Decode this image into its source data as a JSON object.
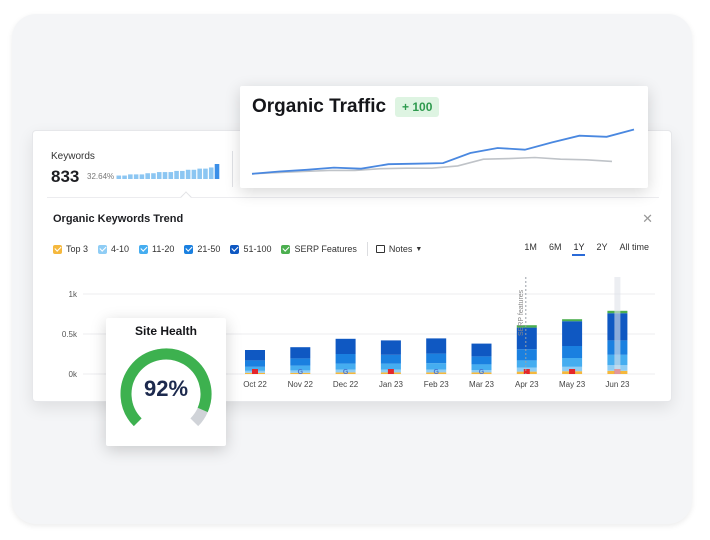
{
  "colors": {
    "top3": "#f5b83d",
    "pos4_10": "#8fcdf5",
    "pos11_20": "#45adf0",
    "pos21_50": "#1a80e0",
    "pos51_100": "#0f58c2",
    "serp": "#4caf50",
    "traffic_line": "#4a88e0",
    "traffic_prev": "#bfc3c8",
    "health_arc": "#3db14f",
    "health_track": "#d0d3d8",
    "flag": "#e5262a"
  },
  "keywords": {
    "label": "Keywords",
    "value": "833",
    "delta": "32.64%",
    "spark_values": [
      3,
      3,
      4,
      4,
      4,
      5,
      5,
      6,
      6,
      6,
      7,
      7,
      8,
      8,
      9,
      9,
      10,
      13
    ],
    "spark_icon": "bar-sparkline"
  },
  "trend": {
    "title": "Organic Keywords Trend",
    "close_icon": "close-icon",
    "legend": [
      {
        "label": "Top 3",
        "color": "#f5b83d"
      },
      {
        "label": "4-10",
        "color": "#8fcdf5"
      },
      {
        "label": "11-20",
        "color": "#45adf0"
      },
      {
        "label": "21-50",
        "color": "#1a80e0"
      },
      {
        "label": "51-100",
        "color": "#0f58c2"
      },
      {
        "label": "SERP Features",
        "color": "#4caf50"
      }
    ],
    "notes_label": "Notes",
    "ranges": [
      "1M",
      "6M",
      "1Y",
      "2Y",
      "All time"
    ],
    "active_range": "1Y",
    "annotation_label": "SERP features"
  },
  "chart_data": {
    "type": "bar",
    "stacked": true,
    "categories": [
      "Oct 22",
      "Nov 22",
      "Dec 22",
      "Jan 23",
      "Feb 23",
      "Mar 23",
      "Apr 23",
      "May 23",
      "Jun 23"
    ],
    "y_ticks": [
      "0k",
      "0.5k",
      "1k"
    ],
    "ylim": [
      0,
      1000
    ],
    "series": [
      {
        "name": "Top 3",
        "values": [
          15,
          15,
          20,
          20,
          20,
          20,
          30,
          35,
          40
        ]
      },
      {
        "name": "4-10",
        "values": [
          25,
          30,
          35,
          35,
          35,
          30,
          50,
          55,
          70
        ]
      },
      {
        "name": "11-20",
        "values": [
          50,
          60,
          75,
          75,
          80,
          70,
          90,
          110,
          130
        ]
      },
      {
        "name": "21-50",
        "values": [
          80,
          90,
          120,
          110,
          120,
          100,
          140,
          150,
          180
        ]
      },
      {
        "name": "51-100",
        "values": [
          130,
          140,
          190,
          180,
          190,
          160,
          270,
          310,
          340
        ]
      },
      {
        "name": "SERP Features",
        "values": [
          0,
          0,
          0,
          0,
          0,
          0,
          30,
          25,
          30
        ]
      }
    ],
    "markers": [
      "flag",
      "google",
      "google",
      "flag",
      "google",
      "google",
      "flag",
      "flag",
      "flag"
    ]
  },
  "traffic": {
    "title": "Organic Traffic",
    "badge": "+ 100",
    "current": [
      4,
      8,
      11,
      15,
      13,
      21,
      22,
      23,
      41,
      50,
      47,
      60,
      72,
      70,
      83
    ],
    "previous": [
      4,
      6,
      8,
      10,
      10,
      13,
      14,
      14,
      18,
      30,
      31,
      33,
      30,
      29,
      26
    ],
    "ylim": [
      0,
      100
    ]
  },
  "health": {
    "title": "Site Health",
    "value": "92%",
    "percent": 92
  }
}
